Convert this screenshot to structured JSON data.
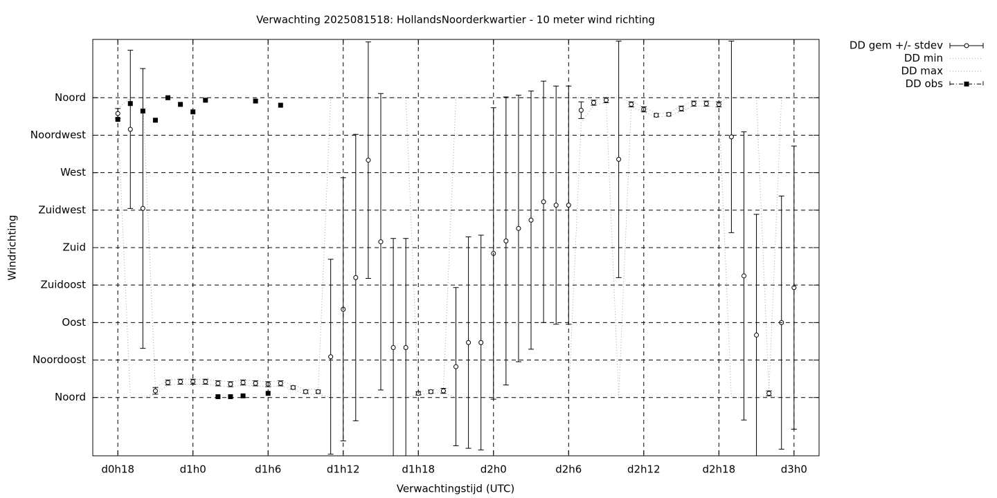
{
  "chart_data": {
    "type": "errorbar",
    "title": "Verwachting 2025081518: HollandsNoorderkwartier - 10 meter wind richting",
    "xlabel": "Verwachtingstijd (UTC)",
    "ylabel": "Windrichting",
    "x": [
      18,
      19,
      20,
      21,
      22,
      23,
      24,
      25,
      26,
      27,
      28,
      29,
      30,
      31,
      32,
      33,
      34,
      35,
      36,
      37,
      38,
      39,
      40,
      41,
      42,
      43,
      44,
      45,
      46,
      47,
      48,
      49,
      50,
      51,
      52,
      53,
      54,
      55,
      56,
      57,
      58,
      59,
      60,
      61,
      62,
      63,
      64,
      65,
      66,
      67,
      68,
      69,
      70,
      71,
      72
    ],
    "xlim": [
      16,
      74
    ],
    "xticks": [
      {
        "value": 18,
        "label": "d0h18"
      },
      {
        "value": 24,
        "label": "d1h0"
      },
      {
        "value": 30,
        "label": "d1h6"
      },
      {
        "value": 36,
        "label": "d1h12"
      },
      {
        "value": 42,
        "label": "d1h18"
      },
      {
        "value": 48,
        "label": "d2h0"
      },
      {
        "value": 54,
        "label": "d2h6"
      },
      {
        "value": 60,
        "label": "d2h12"
      },
      {
        "value": 66,
        "label": "d2h18"
      },
      {
        "value": 72,
        "label": "d3h0"
      }
    ],
    "ylim": [
      -70,
      430
    ],
    "yticks": [
      {
        "value": 0,
        "label": "Noord"
      },
      {
        "value": 45,
        "label": "Noordoost"
      },
      {
        "value": 90,
        "label": "Oost"
      },
      {
        "value": 135,
        "label": "Zuidoost"
      },
      {
        "value": 180,
        "label": "Zuid"
      },
      {
        "value": 225,
        "label": "Zuidwest"
      },
      {
        "value": 270,
        "label": "West"
      },
      {
        "value": 315,
        "label": "Noordwest"
      },
      {
        "value": 360,
        "label": "Noord"
      }
    ],
    "grid": true,
    "legend": "outside-top-right",
    "series": [
      {
        "name": "DD gem +/- stdev",
        "color": "#000000",
        "style": "errorbar",
        "values": [
          341,
          322,
          227,
          8,
          18,
          19,
          19,
          19,
          17,
          16,
          18,
          17,
          16,
          17,
          12,
          7,
          7,
          49,
          106,
          144,
          285,
          187,
          60,
          60,
          5,
          7,
          8,
          37,
          66,
          66,
          173,
          188,
          203,
          213,
          235,
          231,
          231,
          345,
          354,
          357,
          286,
          352,
          346,
          339,
          340,
          347,
          353,
          353,
          352,
          313,
          146,
          75,
          5,
          90,
          132
        ],
        "stdev": [
          6,
          95,
          168,
          4,
          3,
          3,
          3,
          3,
          3,
          3,
          3,
          3,
          3,
          3,
          2,
          2,
          2,
          117,
          158,
          172,
          142,
          178,
          131,
          131,
          2,
          2,
          3,
          95,
          127,
          129,
          175,
          173,
          160,
          155,
          145,
          143,
          143,
          10,
          3,
          3,
          142,
          3,
          3,
          2,
          2,
          3,
          3,
          3,
          3,
          115,
          173,
          145,
          3,
          152,
          170
        ]
      },
      {
        "name": "DD min",
        "color": "#a0a0a0",
        "style": "dotted",
        "values": [
          335,
          0,
          0,
          4,
          15,
          16,
          16,
          16,
          14,
          13,
          15,
          14,
          13,
          14,
          9,
          4,
          4,
          0,
          0,
          0,
          0,
          0,
          0,
          0,
          3,
          5,
          6,
          0,
          0,
          0,
          0,
          0,
          0,
          0,
          0,
          0,
          0,
          330,
          351,
          354,
          0,
          349,
          343,
          337,
          338,
          344,
          350,
          350,
          349,
          0,
          0,
          0,
          2,
          0,
          0
        ]
      },
      {
        "name": "DD max",
        "color": "#a0a0a0",
        "style": "dotted",
        "values": [
          347,
          360,
          360,
          12,
          21,
          22,
          22,
          22,
          20,
          19,
          21,
          20,
          19,
          20,
          15,
          10,
          10,
          360,
          360,
          360,
          360,
          360,
          360,
          360,
          7,
          9,
          10,
          360,
          360,
          360,
          360,
          360,
          360,
          360,
          360,
          360,
          360,
          360,
          357,
          360,
          360,
          355,
          349,
          341,
          342,
          350,
          356,
          356,
          355,
          360,
          360,
          360,
          8,
          360,
          360
        ]
      },
      {
        "name": "DD obs",
        "color": "#000000",
        "style": "points",
        "values": [
          334,
          353,
          344,
          333,
          360,
          352,
          343,
          357,
          1,
          1,
          2,
          356,
          5,
          351,
          null,
          null,
          null,
          null,
          null,
          null,
          null,
          null,
          null,
          null,
          null,
          null,
          null,
          null,
          null,
          null,
          null,
          null,
          null,
          null,
          null,
          null,
          null,
          null,
          null,
          null,
          null,
          null,
          null,
          null,
          null,
          null,
          null,
          null,
          null,
          null,
          null,
          null,
          null,
          null,
          null
        ]
      }
    ]
  }
}
